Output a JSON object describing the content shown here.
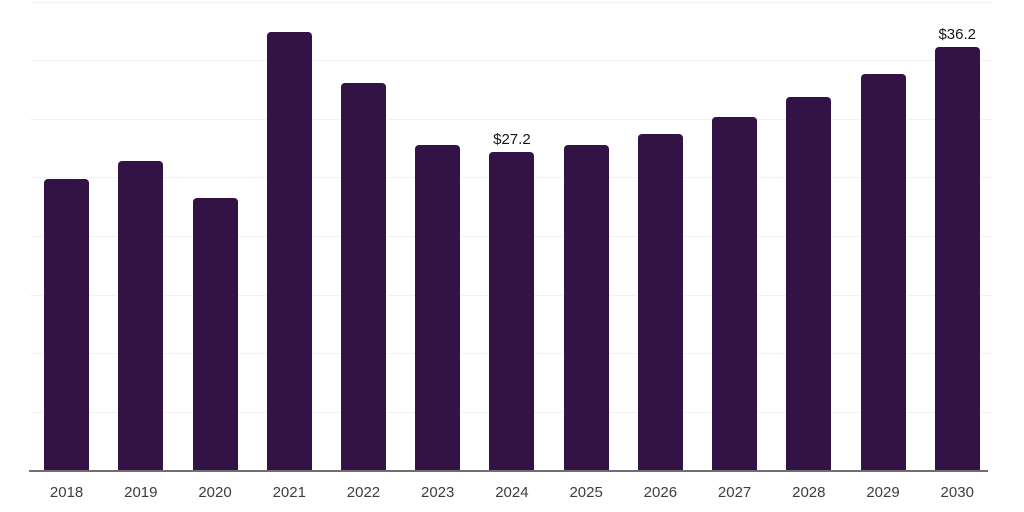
{
  "chart_data": {
    "type": "bar",
    "title": "",
    "xlabel": "",
    "ylabel": "",
    "categories": [
      "2018",
      "2019",
      "2020",
      "2021",
      "2022",
      "2023",
      "2024",
      "2025",
      "2026",
      "2027",
      "2028",
      "2029",
      "2030"
    ],
    "values": [
      24.9,
      26.4,
      23.3,
      37.4,
      33.1,
      27.8,
      27.2,
      27.8,
      28.7,
      30.2,
      31.9,
      33.9,
      36.2
    ],
    "value_labels": {
      "2024": "$27.2",
      "2030": "$36.2"
    },
    "ylim": [
      0,
      40
    ],
    "grid_interval": 5,
    "grid": true,
    "legend_position": "none",
    "colors": {
      "bar": "#331345",
      "axis": "#6f6f6f",
      "gridline": "#f2f2f4",
      "tick_label": "#3d3d3d",
      "value_label": "#161616",
      "background": "#ffffff"
    }
  }
}
